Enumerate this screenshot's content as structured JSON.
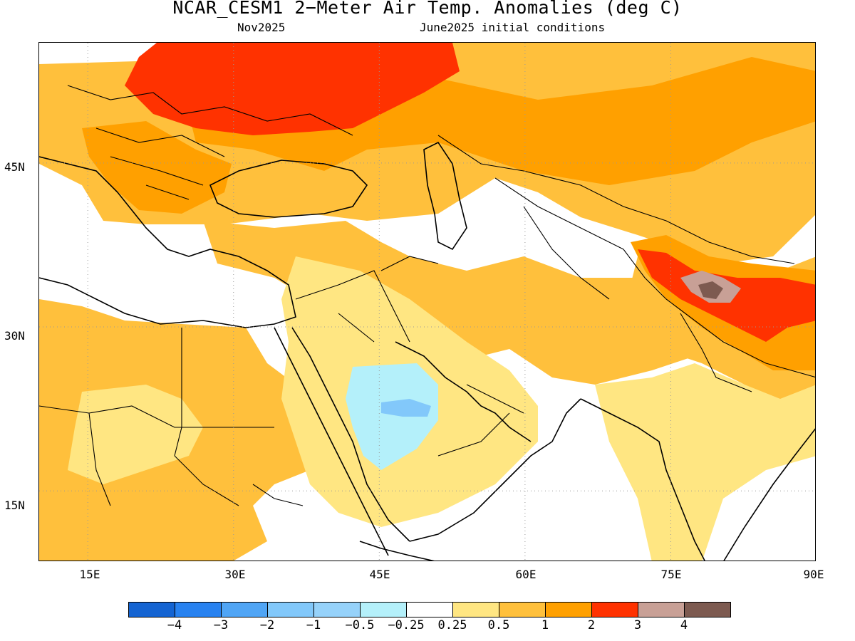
{
  "title": "NCAR_CESM1 2−Meter Air Temp. Anomalies (deg C)",
  "subtitle_left": "Nov2025",
  "subtitle_right": "June2025 initial conditions",
  "map": {
    "lon_range": [
      10,
      90
    ],
    "lat_range": [
      8.5,
      56
    ],
    "lat_ticks": [
      "45N",
      "30N",
      "15N"
    ],
    "lon_ticks": [
      "15E",
      "30E",
      "45E",
      "60E",
      "75E",
      "90E"
    ],
    "lat_tick_values": [
      45,
      30,
      15
    ],
    "lon_tick_values": [
      15,
      30,
      45,
      60,
      75,
      90
    ],
    "gridlines": "dotted"
  },
  "colors": {
    "c_m5": "#1464d2",
    "c_m4": "#2882f0",
    "c_m3": "#50a5f5",
    "c_m2": "#82c8fa",
    "c_m1": "#96d2fa",
    "c_m05": "#b4f0fa",
    "c_0": "#ffffff",
    "c_p025": "#ffe682",
    "c_p05": "#ffc03c",
    "c_p1": "#ffa000",
    "c_p2": "#ff3200",
    "c_p3": "#c8a096",
    "c_p4": "#7d5a50",
    "coast": "#000000"
  },
  "colorbar": {
    "colors": [
      "#1464d2",
      "#2882f0",
      "#50a5f5",
      "#82c8fa",
      "#96d2fa",
      "#b4f0fa",
      "#ffffff",
      "#ffe682",
      "#ffc03c",
      "#ffa000",
      "#ff3200",
      "#c8a096",
      "#7d5a50"
    ],
    "labels": [
      "−4",
      "−3",
      "−2",
      "−1",
      "−0.5",
      "−0.25",
      "0.25",
      "0.5",
      "1",
      "2",
      "3",
      "4"
    ]
  }
}
